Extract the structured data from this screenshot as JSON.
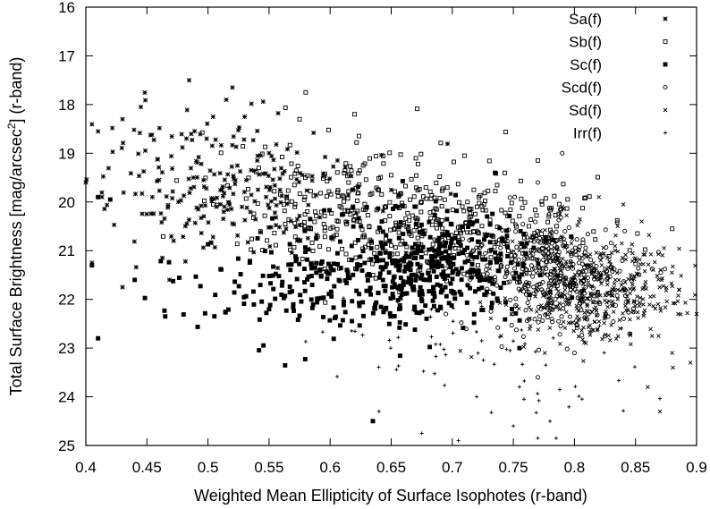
{
  "chart_data": {
    "type": "scatter",
    "xlabel": "Weighted Mean Ellipticity of Surface Isophotes (r-band)",
    "ylabel": {
      "main": "Total Surface Brightness [mag/arcsec",
      "superscript": "2",
      "suffix": "] (r-band)"
    },
    "xlim": [
      0.4,
      0.9
    ],
    "ylim": [
      25,
      16
    ],
    "y_inverted": true,
    "xticks": [
      "0.4",
      "0.45",
      "0.5",
      "0.55",
      "0.6",
      "0.65",
      "0.7",
      "0.75",
      "0.8",
      "0.85",
      "0.9"
    ],
    "yticks": [
      "16",
      "17",
      "18",
      "19",
      "20",
      "21",
      "22",
      "23",
      "24",
      "25"
    ],
    "grid": false,
    "legend_position": "top-right",
    "colors": {
      "points": "#000000",
      "axes": "#000000",
      "background": "#ffffff"
    },
    "series": [
      {
        "name": "Sa(f)",
        "marker": "asterisk",
        "clusters": [
          {
            "mean": [
              0.5,
              19.6
            ],
            "sd": [
              0.05,
              0.8
            ],
            "count": 190
          },
          {
            "mean": [
              0.56,
              20.0
            ],
            "sd": [
              0.05,
              0.6
            ],
            "count": 70
          }
        ],
        "points": [
          [
            0.52,
            17.65
          ],
          [
            0.43,
            18.3
          ],
          [
            0.445,
            18.05
          ],
          [
            0.41,
            18.55
          ],
          [
            0.4,
            19.6
          ],
          [
            0.405,
            21.25
          ],
          [
            0.43,
            21.75
          ],
          [
            0.515,
            17.9
          ],
          [
            0.53,
            18.25
          ]
        ]
      },
      {
        "name": "Sb(f)",
        "marker": "square",
        "clusters": [
          {
            "mean": [
              0.62,
              20.1
            ],
            "sd": [
              0.055,
              0.6
            ],
            "count": 260
          },
          {
            "mean": [
              0.7,
              20.5
            ],
            "sd": [
              0.05,
              0.6
            ],
            "count": 170
          },
          {
            "mean": [
              0.78,
              20.6
            ],
            "sd": [
              0.03,
              0.5
            ],
            "count": 40
          }
        ],
        "points": [
          [
            0.58,
            17.75
          ],
          [
            0.62,
            18.2
          ],
          [
            0.575,
            18.3
          ],
          [
            0.88,
            20.55
          ],
          [
            0.77,
            19.15
          ],
          [
            0.71,
            19.05
          ],
          [
            0.65,
            19.45
          ]
        ]
      },
      {
        "name": "Sc(f)",
        "marker": "filled-square",
        "clusters": [
          {
            "mean": [
              0.68,
              21.3
            ],
            "sd": [
              0.045,
              0.55
            ],
            "count": 420
          },
          {
            "mean": [
              0.6,
              21.6
            ],
            "sd": [
              0.05,
              0.6
            ],
            "count": 140
          },
          {
            "mean": [
              0.52,
              21.9
            ],
            "sd": [
              0.05,
              0.5
            ],
            "count": 30
          }
        ],
        "points": [
          [
            0.41,
            19.9
          ],
          [
            0.405,
            21.3
          ],
          [
            0.41,
            22.8
          ],
          [
            0.465,
            22.35
          ],
          [
            0.44,
            21.6
          ],
          [
            0.635,
            24.5
          ],
          [
            0.735,
            19.4
          ],
          [
            0.755,
            23.0
          ],
          [
            0.42,
            19.95
          ]
        ]
      },
      {
        "name": "Scd(f)",
        "marker": "circle",
        "clusters": [
          {
            "mean": [
              0.785,
              21.6
            ],
            "sd": [
              0.03,
              0.55
            ],
            "count": 320
          },
          {
            "mean": [
              0.76,
              21.1
            ],
            "sd": [
              0.025,
              0.5
            ],
            "count": 80
          }
        ],
        "points": [
          [
            0.77,
            19.6
          ],
          [
            0.79,
            19.0
          ],
          [
            0.77,
            23.6
          ],
          [
            0.8,
            23.1
          ]
        ]
      },
      {
        "name": "Sd(f)",
        "marker": "cross",
        "clusters": [
          {
            "mean": [
              0.825,
              21.9
            ],
            "sd": [
              0.035,
              0.55
            ],
            "count": 330
          },
          {
            "mean": [
              0.785,
              21.4
            ],
            "sd": [
              0.035,
              0.5
            ],
            "count": 90
          }
        ],
        "points": [
          [
            0.885,
            22.3
          ],
          [
            0.9,
            22.3
          ],
          [
            0.895,
            23.3
          ],
          [
            0.86,
            23.8
          ],
          [
            0.855,
            20.4
          ],
          [
            0.84,
            20.05
          ],
          [
            0.79,
            20.1
          ],
          [
            0.82,
            19.9
          ],
          [
            0.87,
            24.3
          ],
          [
            0.88,
            23.1
          ]
        ]
      },
      {
        "name": "Irr(f)",
        "marker": "plus",
        "clusters": [
          {
            "mean": [
              0.68,
              22.8
            ],
            "sd": [
              0.05,
              0.6
            ],
            "count": 45
          },
          {
            "mean": [
              0.77,
              23.6
            ],
            "sd": [
              0.04,
              0.6
            ],
            "count": 25
          }
        ],
        "points": [
          [
            0.64,
            24.3
          ],
          [
            0.675,
            24.75
          ],
          [
            0.705,
            24.9
          ],
          [
            0.77,
            24.85
          ],
          [
            0.785,
            24.85
          ],
          [
            0.75,
            24.6
          ],
          [
            0.72,
            24.0
          ],
          [
            0.78,
            24.5
          ]
        ]
      }
    ]
  }
}
